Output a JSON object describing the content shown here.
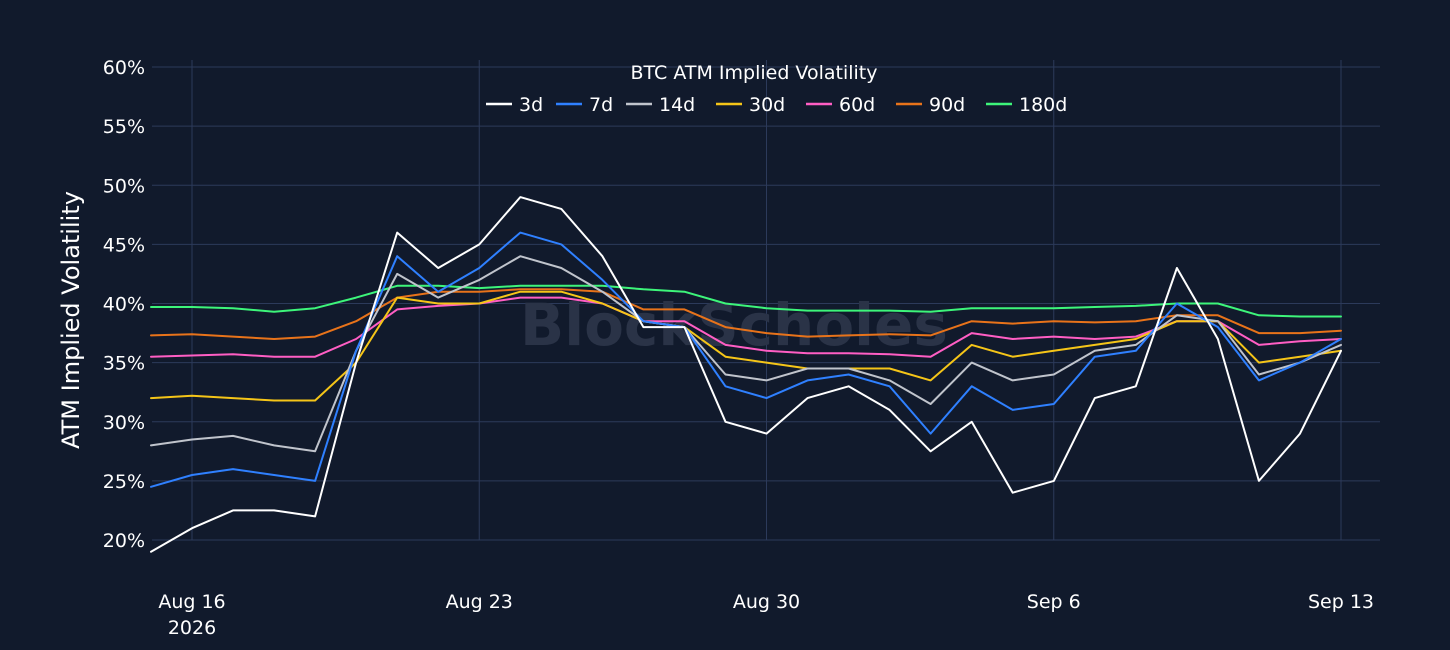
{
  "chart_data": {
    "type": "line",
    "title": "BTC ATM Implied Volatility",
    "ylabel": "ATM Implied Volatility",
    "xlabel": "",
    "watermark": "BlockScholes",
    "x_range": [
      "2026-08-15",
      "2026-09-13"
    ],
    "ylim": [
      17,
      61
    ],
    "y_ticks": [
      20,
      25,
      30,
      35,
      40,
      45,
      50,
      55,
      60
    ],
    "y_tick_labels": [
      "20%",
      "25%",
      "30%",
      "35%",
      "40%",
      "45%",
      "50%",
      "55%",
      "60%"
    ],
    "x_ticks": [
      {
        "date": "2026-08-16",
        "label": "Aug 16",
        "sublabel": "2026"
      },
      {
        "date": "2026-08-23",
        "label": "Aug 23",
        "sublabel": ""
      },
      {
        "date": "2026-08-30",
        "label": "Aug 30",
        "sublabel": ""
      },
      {
        "date": "2026-09-06",
        "label": "Sep 6",
        "sublabel": ""
      },
      {
        "date": "2026-09-13",
        "label": "Sep 13",
        "sublabel": ""
      }
    ],
    "grid": true,
    "legend_position": "top-center",
    "x": [
      "2026-08-15",
      "2026-08-16",
      "2026-08-17",
      "2026-08-18",
      "2026-08-19",
      "2026-08-20",
      "2026-08-21",
      "2026-08-22",
      "2026-08-23",
      "2026-08-24",
      "2026-08-25",
      "2026-08-26",
      "2026-08-27",
      "2026-08-28",
      "2026-08-29",
      "2026-08-30",
      "2026-08-31",
      "2026-09-01",
      "2026-09-02",
      "2026-09-03",
      "2026-09-04",
      "2026-09-05",
      "2026-09-06",
      "2026-09-07",
      "2026-09-08",
      "2026-09-09",
      "2026-09-10",
      "2026-09-11",
      "2026-09-12",
      "2026-09-13"
    ],
    "series": [
      {
        "name": "3d",
        "color": "#ffffff",
        "values": [
          19.0,
          21.0,
          22.5,
          22.5,
          22.0,
          35.0,
          46.0,
          43.0,
          45.0,
          49.0,
          48.0,
          44.0,
          38.0,
          38.0,
          30.0,
          29.0,
          32.0,
          33.0,
          31.0,
          27.5,
          30.0,
          24.0,
          25.0,
          32.0,
          33.0,
          43.0,
          37.0,
          25.0,
          29.0,
          36.0
        ]
      },
      {
        "name": "7d",
        "color": "#2f80ff",
        "values": [
          24.5,
          25.5,
          26.0,
          25.5,
          25.0,
          36.0,
          44.0,
          41.0,
          43.0,
          46.0,
          45.0,
          42.0,
          38.5,
          38.0,
          33.0,
          32.0,
          33.5,
          34.0,
          33.0,
          29.0,
          33.0,
          31.0,
          31.5,
          35.5,
          36.0,
          40.0,
          38.0,
          33.5,
          35.0,
          37.0
        ]
      },
      {
        "name": "14d",
        "color": "#c0c4cc",
        "values": [
          28.0,
          28.5,
          28.8,
          28.0,
          27.5,
          36.0,
          42.5,
          40.5,
          42.0,
          44.0,
          43.0,
          41.0,
          38.5,
          38.0,
          34.0,
          33.5,
          34.5,
          34.5,
          33.5,
          31.5,
          35.0,
          33.5,
          34.0,
          36.0,
          36.5,
          39.0,
          38.5,
          34.0,
          35.0,
          36.5
        ]
      },
      {
        "name": "30d",
        "color": "#f5c518",
        "values": [
          32.0,
          32.2,
          32.0,
          31.8,
          31.8,
          35.0,
          40.5,
          40.0,
          40.0,
          41.0,
          41.0,
          40.0,
          38.5,
          38.0,
          35.5,
          35.0,
          34.5,
          34.5,
          34.5,
          33.5,
          36.5,
          35.5,
          36.0,
          36.5,
          37.0,
          38.5,
          38.5,
          35.0,
          35.5,
          36.0
        ]
      },
      {
        "name": "60d",
        "color": "#ff5ec4",
        "values": [
          35.5,
          35.6,
          35.7,
          35.5,
          35.5,
          37.0,
          39.5,
          39.8,
          40.0,
          40.5,
          40.5,
          40.0,
          38.5,
          38.5,
          36.5,
          36.0,
          35.8,
          35.8,
          35.7,
          35.5,
          37.5,
          37.0,
          37.2,
          37.0,
          37.2,
          38.5,
          38.5,
          36.5,
          36.8,
          37.0
        ]
      },
      {
        "name": "90d",
        "color": "#e8731a",
        "values": [
          37.3,
          37.4,
          37.2,
          37.0,
          37.2,
          38.5,
          40.5,
          41.0,
          41.0,
          41.2,
          41.2,
          41.0,
          39.5,
          39.5,
          38.0,
          37.5,
          37.2,
          37.3,
          37.4,
          37.3,
          38.5,
          38.3,
          38.5,
          38.4,
          38.5,
          39.0,
          39.0,
          37.5,
          37.5,
          37.7
        ]
      },
      {
        "name": "180d",
        "color": "#3df57a",
        "values": [
          39.7,
          39.7,
          39.6,
          39.3,
          39.6,
          40.5,
          41.5,
          41.5,
          41.3,
          41.5,
          41.5,
          41.5,
          41.2,
          41.0,
          40.0,
          39.6,
          39.4,
          39.4,
          39.4,
          39.3,
          39.6,
          39.6,
          39.6,
          39.7,
          39.8,
          40.0,
          40.0,
          39.0,
          38.9,
          38.9
        ]
      }
    ]
  }
}
